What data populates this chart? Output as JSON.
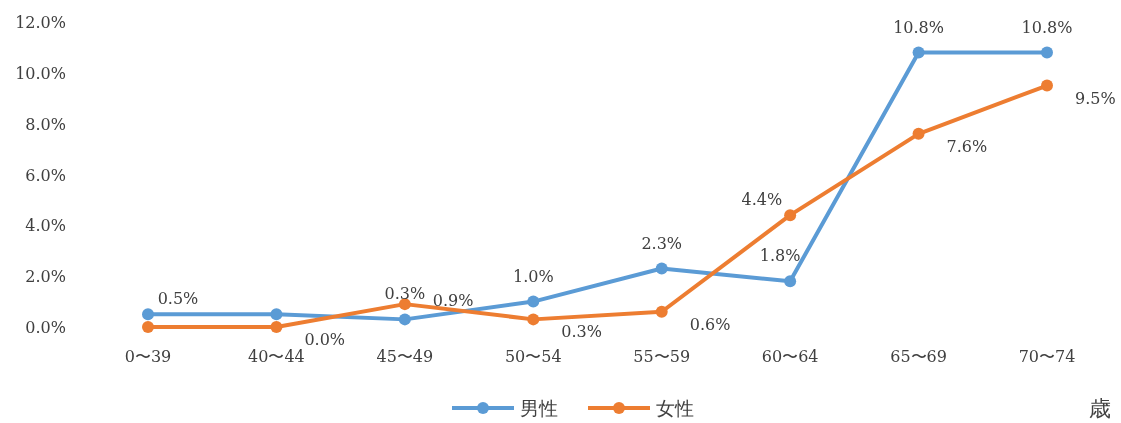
{
  "chart_data": {
    "type": "line",
    "xlabel": "歳",
    "categories": [
      "0〜39",
      "40〜44",
      "45〜49",
      "50〜54",
      "55〜59",
      "60〜64",
      "65〜69",
      "70〜74"
    ],
    "series": [
      {
        "name": "男性",
        "color": "#5b9bd5",
        "values": [
          0.5,
          0.5,
          0.3,
          1.0,
          2.3,
          1.8,
          10.8,
          10.8
        ],
        "value_labels": [
          "0.5%",
          null,
          "0.3%",
          "1.0%",
          "2.3%",
          "1.8%",
          "10.8%",
          "10.8%"
        ]
      },
      {
        "name": "女性",
        "color": "#ed7d31",
        "values": [
          0.0,
          0.0,
          0.9,
          0.3,
          0.6,
          4.4,
          7.6,
          9.5
        ],
        "value_labels": [
          null,
          "0.0%",
          "0.9%",
          "0.3%",
          "0.6%",
          "4.4%",
          "7.6%",
          "9.5%"
        ]
      }
    ],
    "ylim": [
      0,
      12
    ],
    "yticks": [
      {
        "value": 0,
        "label": "0.0%"
      },
      {
        "value": 2,
        "label": "2.0%"
      },
      {
        "value": 4,
        "label": "4.0%"
      },
      {
        "value": 6,
        "label": "6.0%"
      },
      {
        "value": 8,
        "label": "8.0%"
      },
      {
        "value": 10,
        "label": "10.0%"
      },
      {
        "value": 12,
        "label": "12.0%"
      }
    ],
    "grid": false,
    "legend": "bottom",
    "marker": "circle",
    "line_style": "solid"
  }
}
